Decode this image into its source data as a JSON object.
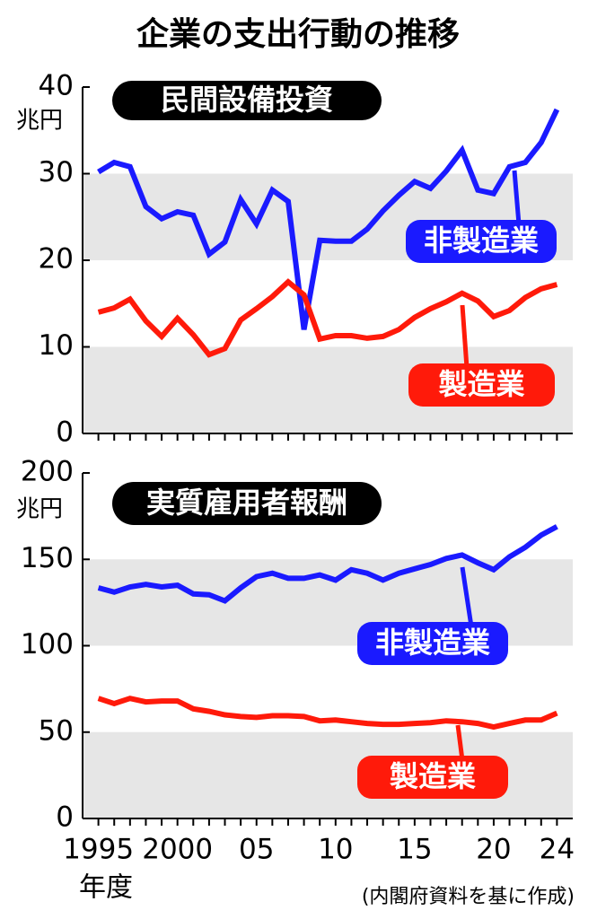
{
  "title": "企業の支出行動の推移",
  "source": "(内閣府資料を基に作成)",
  "chart_data": [
    {
      "type": "line",
      "title": "民間設備投資",
      "unit": "兆円",
      "x": [
        1995,
        1996,
        1997,
        1998,
        1999,
        2000,
        2001,
        2002,
        2003,
        2004,
        2005,
        2006,
        2007,
        2008,
        2009,
        2010,
        2011,
        2012,
        2013,
        2014,
        2015,
        2016,
        2017,
        2018,
        2019,
        2020,
        2021,
        2022,
        2023,
        2024
      ],
      "series": [
        {
          "name": "非製造業",
          "color": "#1a1aff",
          "values": [
            30.2,
            31.3,
            30.8,
            26.2,
            24.8,
            25.6,
            25.2,
            20.7,
            22.1,
            27.0,
            24.2,
            28.1,
            26.8,
            12.0,
            22.3,
            22.2,
            22.2,
            23.6,
            25.7,
            27.5,
            29.1,
            28.3,
            30.3,
            32.7,
            28.1,
            27.7,
            30.8,
            31.3,
            33.6,
            37.4
          ]
        },
        {
          "name": "製造業",
          "color": "#ff1a0a",
          "values": [
            14.0,
            14.5,
            15.5,
            13.0,
            11.2,
            13.3,
            11.4,
            9.1,
            9.8,
            13.1,
            14.4,
            15.8,
            17.5,
            16.0,
            10.9,
            11.3,
            11.3,
            11.0,
            11.2,
            12.0,
            13.4,
            14.4,
            15.2,
            16.2,
            15.3,
            13.5,
            14.2,
            15.7,
            16.7,
            17.2
          ]
        }
      ],
      "xlim": [
        1994,
        2025
      ],
      "ylim": [
        0,
        40
      ],
      "yticks": [
        0,
        10,
        20,
        30,
        40
      ],
      "band_color": "#e6e6e6"
    },
    {
      "type": "line",
      "title": "実質雇用者報酬",
      "unit": "兆円",
      "xlabel": "年度",
      "x": [
        1995,
        1996,
        1997,
        1998,
        1999,
        2000,
        2001,
        2002,
        2003,
        2004,
        2005,
        2006,
        2007,
        2008,
        2009,
        2010,
        2011,
        2012,
        2013,
        2014,
        2015,
        2016,
        2017,
        2018,
        2019,
        2020,
        2021,
        2022,
        2023,
        2024
      ],
      "series": [
        {
          "name": "非製造業",
          "color": "#1a1aff",
          "values": [
            133.5,
            131,
            134,
            135.5,
            134,
            135,
            130,
            129.5,
            126,
            133.5,
            140,
            142,
            139,
            139,
            141,
            138,
            144,
            142,
            138,
            142,
            144.5,
            147,
            150.5,
            152.5,
            148,
            144,
            151.5,
            157,
            164,
            169
          ]
        },
        {
          "name": "製造業",
          "color": "#ff1a0a",
          "values": [
            69.5,
            66.5,
            69.5,
            67.5,
            68,
            68,
            63.5,
            62,
            60,
            59,
            58.5,
            59.5,
            59.5,
            59,
            56.5,
            57,
            56,
            55,
            54.5,
            54.5,
            55,
            55.5,
            56.5,
            56,
            55,
            53,
            55,
            57,
            57,
            61
          ]
        }
      ],
      "xlim": [
        1994,
        2025
      ],
      "ylim": [
        0,
        200
      ],
      "yticks": [
        0,
        50,
        100,
        150,
        200
      ],
      "xticks": [
        1995,
        2000,
        {
          "value": 2005,
          "label": "05"
        },
        {
          "value": 2010,
          "label": "10"
        },
        {
          "value": 2015,
          "label": "15"
        },
        {
          "value": 2020,
          "label": "20"
        },
        {
          "value": 2024,
          "label": "24"
        }
      ],
      "band_color": "#e6e6e6"
    }
  ]
}
